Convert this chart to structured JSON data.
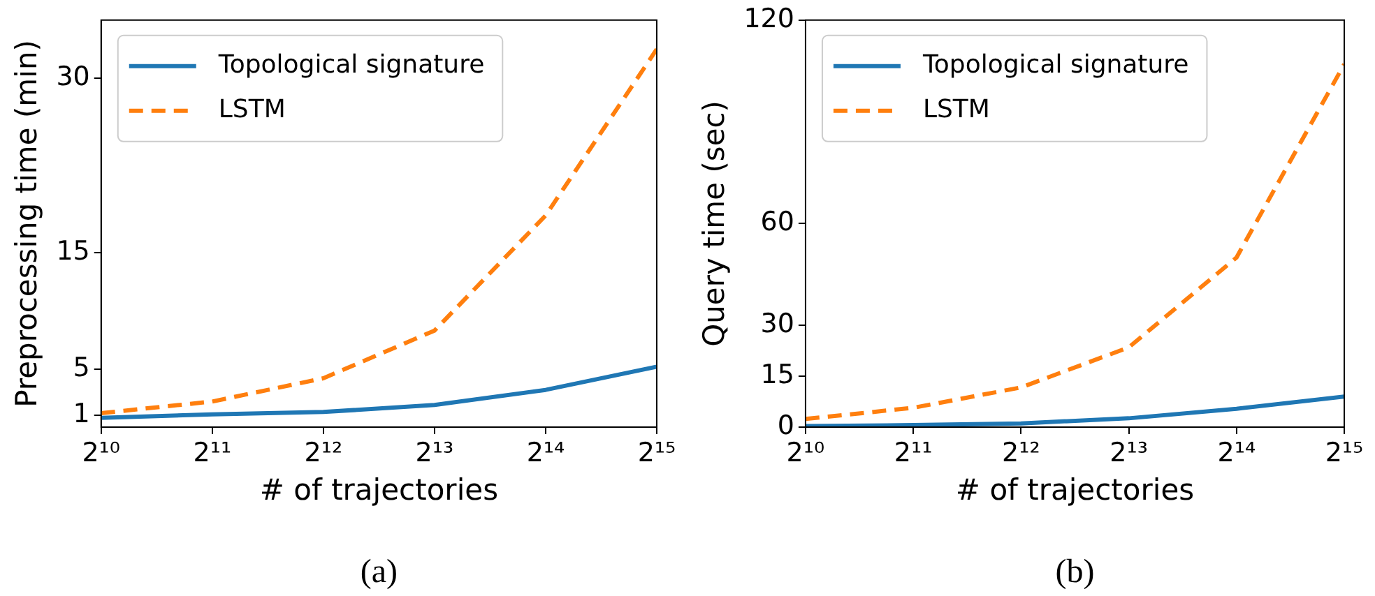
{
  "chart_data": [
    {
      "type": "line",
      "xlabel": "# of trajectories",
      "ylabel": "Preprocessing time (min)",
      "annotations": [
        "(a)"
      ],
      "x": [
        1024,
        2048,
        4096,
        8192,
        16384,
        32768
      ],
      "log": "x",
      "xlim": [
        1024,
        32768
      ],
      "xticks": [
        {
          "value": 1024,
          "label": "2¹⁰"
        },
        {
          "value": 2048,
          "label": "2¹¹"
        },
        {
          "value": 4096,
          "label": "2¹²"
        },
        {
          "value": 8192,
          "label": "2¹³"
        },
        {
          "value": 16384,
          "label": "2¹⁴"
        },
        {
          "value": 32768,
          "label": "2¹⁵"
        }
      ],
      "ylim": [
        0,
        35
      ],
      "yticks": [
        1,
        5,
        15,
        30
      ],
      "grid": false,
      "legend": "top left",
      "marker": "none",
      "series": [
        {
          "name": "Topological signature",
          "color": "#1f77b4",
          "line_style": "solid",
          "values": [
            0.8,
            1.1,
            1.3,
            1.9,
            3.2,
            5.2
          ]
        },
        {
          "name": "LSTM",
          "color": "#ff7f0e",
          "line_style": "dashed",
          "values": [
            1.2,
            2.2,
            4.2,
            8.3,
            18.2,
            32.5
          ]
        }
      ]
    },
    {
      "type": "line",
      "xlabel": "# of trajectories",
      "ylabel": "Query time (sec)",
      "annotations": [
        "(b)"
      ],
      "x": [
        1024,
        2048,
        4096,
        8192,
        16384,
        32768
      ],
      "log": "x",
      "xlim": [
        1024,
        32768
      ],
      "xticks": [
        {
          "value": 1024,
          "label": "2¹⁰"
        },
        {
          "value": 2048,
          "label": "2¹¹"
        },
        {
          "value": 4096,
          "label": "2¹²"
        },
        {
          "value": 8192,
          "label": "2¹³"
        },
        {
          "value": 16384,
          "label": "2¹⁴"
        },
        {
          "value": 32768,
          "label": "2¹⁵"
        }
      ],
      "ylim": [
        0,
        120
      ],
      "yticks": [
        0,
        15,
        30,
        60,
        120
      ],
      "grid": false,
      "legend": "top left",
      "marker": "none",
      "series": [
        {
          "name": "Topological signature",
          "color": "#1f77b4",
          "line_style": "solid",
          "values": [
            0.3,
            0.6,
            1.1,
            2.6,
            5.4,
            9
          ]
        },
        {
          "name": "LSTM",
          "color": "#ff7f0e",
          "line_style": "dashed",
          "values": [
            2.4,
            5.7,
            11.7,
            23.5,
            50,
            107
          ]
        }
      ]
    }
  ]
}
